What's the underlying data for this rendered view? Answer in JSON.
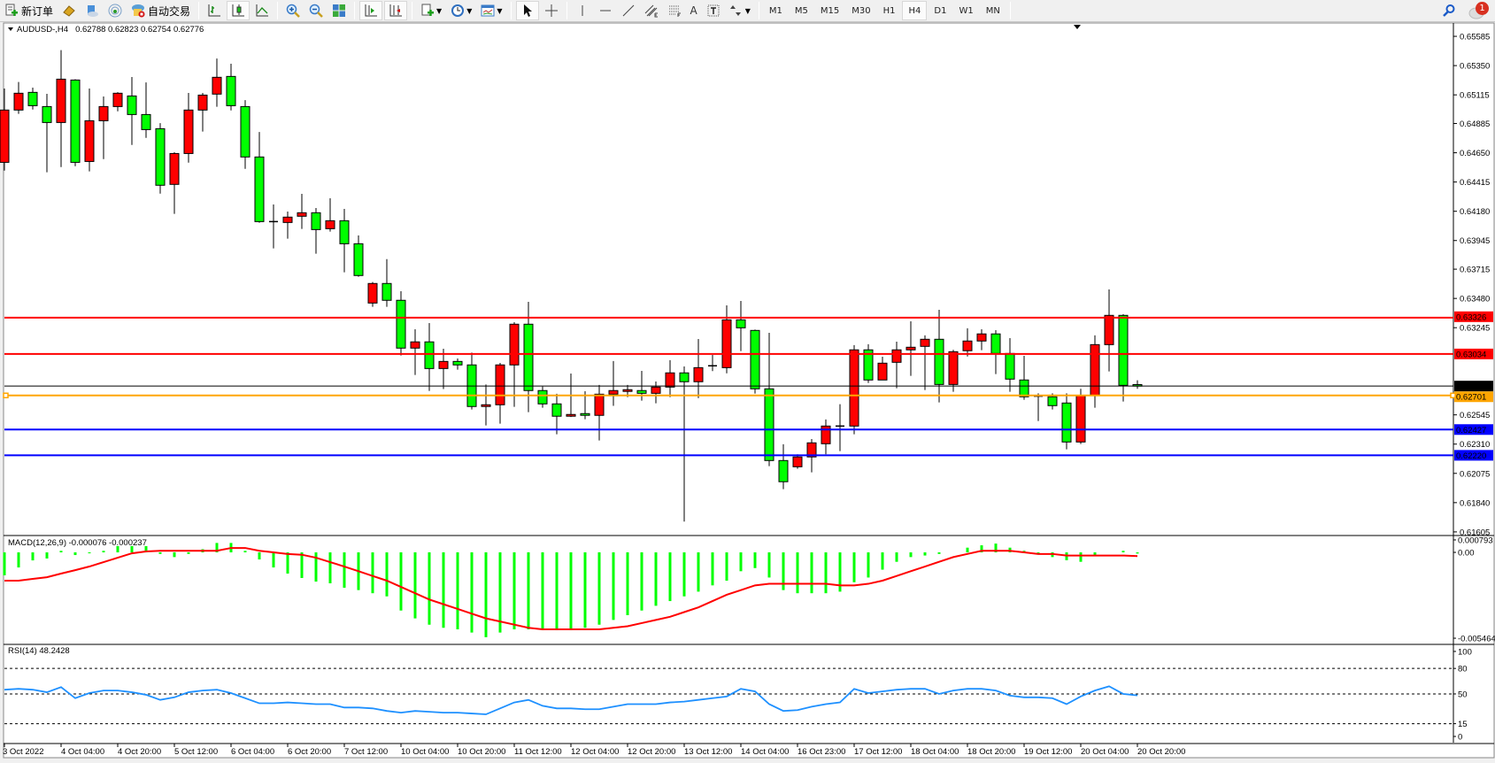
{
  "toolbar": {
    "new_order_label": "新订单",
    "auto_trading_label": "自动交易",
    "icons": [
      "new-order-icon",
      "market-watch-icon",
      "data-window-icon",
      "navigator-icon",
      "auto-trading-icon",
      "bar-chart-icon",
      "candlestick-icon",
      "line-chart-icon",
      "zoom-in-icon",
      "zoom-out-icon",
      "tile-windows-icon",
      "auto-scroll-icon",
      "chart-shift-icon",
      "indicators-icon",
      "periods-icon",
      "templates-icon",
      "cursor-icon",
      "crosshair-icon",
      "vertical-line-icon",
      "horizontal-line-icon",
      "trendline-icon",
      "equidistant-channel-icon",
      "fibonacci-icon",
      "text-icon",
      "text-label-icon",
      "arrows-icon"
    ],
    "timeframes": [
      "M1",
      "M5",
      "M15",
      "M30",
      "H1",
      "H4",
      "D1",
      "W1",
      "MN"
    ],
    "active_timeframe": "H4",
    "text_tool_label": "A",
    "notification_count": "1"
  },
  "chart": {
    "symbol_label": "AUDUSD-,H4",
    "ohlc_label": "0.62788 0.62823 0.62754 0.62776",
    "colors": {
      "bull_body": "#ff0000",
      "bear_body": "#00ff00",
      "wick": "#000000",
      "macd_hist": "#00ff00",
      "macd_signal": "#ff0000",
      "rsi": "#1e90ff"
    }
  },
  "chart_data": [
    {
      "type": "candlestick",
      "title": "AUDUSD-,H4",
      "ylim": [
        0.61583,
        0.65692
      ],
      "y_ticks": [
        "0.65585",
        "0.65350",
        "0.65115",
        "0.64885",
        "0.64650",
        "0.64415",
        "0.64180",
        "0.63945",
        "0.63715",
        "0.63480",
        "0.63245",
        "0.62545",
        "0.62310",
        "0.62075",
        "0.61840",
        "0.61605"
      ],
      "x_labels": [
        {
          "i": 0,
          "label": "3 Oct 2022"
        },
        {
          "i": 4,
          "label": "4 Oct 04:00"
        },
        {
          "i": 8,
          "label": "4 Oct 20:00"
        },
        {
          "i": 12,
          "label": "5 Oct 12:00"
        },
        {
          "i": 16,
          "label": "6 Oct 04:00"
        },
        {
          "i": 20,
          "label": "6 Oct 20:00"
        },
        {
          "i": 24,
          "label": "7 Oct 12:00"
        },
        {
          "i": 28,
          "label": "10 Oct 04:00"
        },
        {
          "i": 32,
          "label": "10 Oct 20:00"
        },
        {
          "i": 36,
          "label": "11 Oct 12:00"
        },
        {
          "i": 40,
          "label": "12 Oct 04:00"
        },
        {
          "i": 44,
          "label": "12 Oct 20:00"
        },
        {
          "i": 48,
          "label": "13 Oct 12:00"
        },
        {
          "i": 52,
          "label": "14 Oct 04:00"
        },
        {
          "i": 56,
          "label": "16 Oct 23:00"
        },
        {
          "i": 60,
          "label": "17 Oct 12:00"
        },
        {
          "i": 64,
          "label": "18 Oct 04:00"
        },
        {
          "i": 68,
          "label": "18 Oct 20:00"
        },
        {
          "i": 72,
          "label": "19 Oct 12:00"
        },
        {
          "i": 76,
          "label": "20 Oct 04:00"
        },
        {
          "i": 80,
          "label": "20 Oct 20:00"
        }
      ],
      "levels": [
        {
          "price": 0.63326,
          "label": "0.63326",
          "color": "#ff0000",
          "width": 2
        },
        {
          "price": 0.63034,
          "label": "0.63034",
          "color": "#ff0000",
          "width": 2
        },
        {
          "price": 0.62776,
          "label": "0.62776",
          "color": "#000000",
          "width": 1
        },
        {
          "price": 0.62701,
          "label": "0.62701",
          "color": "#ffa500",
          "width": 2
        },
        {
          "price": 0.62427,
          "label": "0.62427",
          "color": "#0000ff",
          "width": 2
        },
        {
          "price": 0.6222,
          "label": "0.62220",
          "color": "#0000ff",
          "width": 2
        }
      ],
      "ohlc": [
        [
          0.64573,
          0.65166,
          0.64507,
          0.64993
        ],
        [
          0.64993,
          0.65218,
          0.64962,
          0.65128
        ],
        [
          0.65135,
          0.65173,
          0.64997,
          0.65028
        ],
        [
          0.65021,
          0.65123,
          0.64493,
          0.64893
        ],
        [
          0.64893,
          0.65474,
          0.64535,
          0.65241
        ],
        [
          0.65234,
          0.65241,
          0.64542,
          0.64573
        ],
        [
          0.6458,
          0.65166,
          0.645,
          0.64907
        ],
        [
          0.64907,
          0.65102,
          0.64599,
          0.65021
        ],
        [
          0.65021,
          0.65137,
          0.64983,
          0.65128
        ],
        [
          0.65106,
          0.65258,
          0.64713,
          0.64957
        ],
        [
          0.64957,
          0.65215,
          0.6477,
          0.64836
        ],
        [
          0.64843,
          0.64888,
          0.64322,
          0.64389
        ],
        [
          0.64396,
          0.64654,
          0.64159,
          0.64644
        ],
        [
          0.64644,
          0.6513,
          0.64571,
          0.64993
        ],
        [
          0.64993,
          0.6513,
          0.6482,
          0.65113
        ],
        [
          0.65121,
          0.65407,
          0.65019,
          0.65256
        ],
        [
          0.65263,
          0.65365,
          0.6499,
          0.65028
        ],
        [
          0.65021,
          0.65073,
          0.64521,
          0.64616
        ],
        [
          0.64616,
          0.64817,
          0.64088,
          0.64097
        ],
        [
          0.64097,
          0.64235,
          0.63882,
          0.6409
        ],
        [
          0.6409,
          0.64178,
          0.6396,
          0.64133
        ],
        [
          0.6414,
          0.6432,
          0.64038,
          0.64168
        ],
        [
          0.64168,
          0.64206,
          0.63839,
          0.64033
        ],
        [
          0.6404,
          0.64284,
          0.64017,
          0.64104
        ],
        [
          0.64104,
          0.64199,
          0.6369,
          0.63919
        ],
        [
          0.63919,
          0.63986,
          0.63654,
          0.63664
        ],
        [
          0.63443,
          0.63612,
          0.63413,
          0.636
        ],
        [
          0.636,
          0.63796,
          0.63413,
          0.63465
        ],
        [
          0.63465,
          0.63538,
          0.63022,
          0.63081
        ],
        [
          0.63081,
          0.63232,
          0.62865,
          0.63131
        ],
        [
          0.63131,
          0.63282,
          0.62737,
          0.62917
        ],
        [
          0.62917,
          0.63076,
          0.62752,
          0.62974
        ],
        [
          0.62974,
          0.62998,
          0.62908,
          0.62946
        ],
        [
          0.62946,
          0.63045,
          0.62588,
          0.62612
        ],
        [
          0.62612,
          0.62789,
          0.6246,
          0.62626
        ],
        [
          0.62626,
          0.62962,
          0.62474,
          0.62946
        ],
        [
          0.62946,
          0.63289,
          0.62609,
          0.63273
        ],
        [
          0.63273,
          0.63453,
          0.62567,
          0.6274
        ],
        [
          0.6274,
          0.62773,
          0.62602,
          0.62633
        ],
        [
          0.62633,
          0.62714,
          0.62389,
          0.62534
        ],
        [
          0.62534,
          0.62877,
          0.62528,
          0.62548
        ],
        [
          0.62555,
          0.62735,
          0.6251,
          0.62541
        ],
        [
          0.62541,
          0.62785,
          0.62339,
          0.62711
        ],
        [
          0.62711,
          0.62977,
          0.62617,
          0.6274
        ],
        [
          0.62733,
          0.62785,
          0.62688,
          0.62747
        ],
        [
          0.6274,
          0.62898,
          0.62659,
          0.62718
        ],
        [
          0.62718,
          0.62813,
          0.62638,
          0.62768
        ],
        [
          0.62768,
          0.62984,
          0.62688,
          0.62882
        ],
        [
          0.62882,
          0.62934,
          0.61688,
          0.62811
        ],
        [
          0.62811,
          0.63154,
          0.6268,
          0.62924
        ],
        [
          0.62932,
          0.63026,
          0.62896,
          0.62939
        ],
        [
          0.62924,
          0.63424,
          0.62879,
          0.63308
        ],
        [
          0.63308,
          0.6346,
          0.63057,
          0.63244
        ],
        [
          0.63223,
          0.6323,
          0.62716,
          0.62754
        ],
        [
          0.62754,
          0.63204,
          0.62133,
          0.62178
        ],
        [
          0.62178,
          0.62309,
          0.61948,
          0.62008
        ],
        [
          0.62128,
          0.62228,
          0.62112,
          0.62207
        ],
        [
          0.62207,
          0.62351,
          0.62083,
          0.6232
        ],
        [
          0.62313,
          0.62508,
          0.62228,
          0.62455
        ],
        [
          0.62455,
          0.62631,
          0.62254,
          0.62446
        ],
        [
          0.62455,
          0.63105,
          0.62389,
          0.63067
        ],
        [
          0.63067,
          0.63112,
          0.62801,
          0.62825
        ],
        [
          0.62825,
          0.63012,
          0.62825,
          0.6296
        ],
        [
          0.62967,
          0.63133,
          0.62759,
          0.63067
        ],
        [
          0.63067,
          0.63296,
          0.62858,
          0.63088
        ],
        [
          0.63095,
          0.63183,
          0.62744,
          0.63152
        ],
        [
          0.63152,
          0.63389,
          0.62645,
          0.62789
        ],
        [
          0.62789,
          0.63067,
          0.6273,
          0.63052
        ],
        [
          0.6306,
          0.6324,
          0.63014,
          0.63138
        ],
        [
          0.63138,
          0.63232,
          0.63064,
          0.63195
        ],
        [
          0.63195,
          0.63225,
          0.62872,
          0.63038
        ],
        [
          0.63038,
          0.63161,
          0.6273,
          0.62832
        ],
        [
          0.62825,
          0.63019,
          0.62666,
          0.6269
        ],
        [
          0.62695,
          0.62718,
          0.62496,
          0.62688
        ],
        [
          0.6269,
          0.62718,
          0.62588,
          0.62619
        ],
        [
          0.6264,
          0.62718,
          0.62268,
          0.62327
        ],
        [
          0.62327,
          0.62754,
          0.62311,
          0.62702
        ],
        [
          0.62702,
          0.63183,
          0.62602,
          0.63109
        ],
        [
          0.63109,
          0.63552,
          0.62894,
          0.63344
        ],
        [
          0.63344,
          0.63353,
          0.62652,
          0.62782
        ],
        [
          0.62788,
          0.62823,
          0.62754,
          0.62776
        ]
      ]
    },
    {
      "type": "bar+line",
      "title": "MACD(12,26,9) -0.000076 -0.000237",
      "ylim": [
        -0.0058,
        0.00096
      ],
      "y_ticks": [
        "0.000793",
        "0.00",
        "-0.005464"
      ],
      "series": [
        {
          "type": "bar",
          "values": [
            -0.00146,
            -0.00096,
            -0.00051,
            -0.00039,
            0.0001,
            -0.00017,
            -6e-05,
            0.0001,
            0.0004,
            0.0004,
            0.0004,
            -0.0001,
            -0.0003,
            -0.0001,
            0.0002,
            0.0006,
            0.0006,
            0.0001,
            -0.00045,
            -0.00096,
            -0.00135,
            -0.00163,
            -0.00186,
            -0.00197,
            -0.00225,
            -0.0024,
            -0.0026,
            -0.0028,
            -0.0037,
            -0.0042,
            -0.0046,
            -0.0048,
            -0.0049,
            -0.0051,
            -0.0054,
            -0.0051,
            -0.0049,
            -0.0049,
            -0.0049,
            -0.0049,
            -0.0049,
            -0.0048,
            -0.0046,
            -0.0043,
            -0.004,
            -0.0037,
            -0.0034,
            -0.0031,
            -0.0028,
            -0.0025,
            -0.0021,
            -0.0018,
            -0.0012,
            -0.001,
            -0.0016,
            -0.0024,
            -0.0026,
            -0.0026,
            -0.0026,
            -0.0025,
            -0.0019,
            -0.0016,
            -0.0011,
            -0.0006,
            -0.0003,
            -0.0002,
            -0.0001,
            0.0,
            0.0003,
            0.00045,
            0.00056,
            0.0003,
            0.0001,
            -0.0001,
            -0.0003,
            -0.0005,
            -0.0006,
            -0.0002,
            0.0,
            0.0001,
            -7.6e-05
          ]
        },
        {
          "type": "line",
          "values": [
            -0.0018,
            -0.0018,
            -0.00169,
            -0.00158,
            -0.00135,
            -0.00113,
            -0.0009,
            -0.00062,
            -0.00034,
            -6e-05,
            6e-05,
            0.0001,
            0.0001,
            0.0001,
            0.0001,
            0.0001,
            0.00028,
            0.00028,
            0.0001,
            0.0,
            -0.0001,
            -0.00015,
            -0.00034,
            -0.00062,
            -0.0009,
            -0.0012,
            -0.0015,
            -0.0018,
            -0.0022,
            -0.0026,
            -0.003,
            -0.0033,
            -0.0036,
            -0.0039,
            -0.0042,
            -0.0044,
            -0.0046,
            -0.0048,
            -0.0049,
            -0.0049,
            -0.0049,
            -0.0049,
            -0.0049,
            -0.0048,
            -0.0047,
            -0.0045,
            -0.0043,
            -0.0041,
            -0.0038,
            -0.0035,
            -0.0031,
            -0.0027,
            -0.0024,
            -0.0021,
            -0.002,
            -0.002,
            -0.002,
            -0.002,
            -0.002,
            -0.0021,
            -0.0021,
            -0.002,
            -0.0018,
            -0.0015,
            -0.0012,
            -0.0009,
            -0.0006,
            -0.0003,
            -0.0001,
            0.0001,
            0.0001,
            0.0001,
            0.0,
            -0.0001,
            -0.0001,
            -0.0002,
            -0.0002,
            -0.0002,
            -0.0002,
            -0.0002,
            -0.000237
          ]
        }
      ]
    },
    {
      "type": "line",
      "title": "RSI(14) 48.2428",
      "ylim": [
        -7.3,
        106.2
      ],
      "y_ticks": [
        "100",
        "80",
        "50",
        "15",
        "0"
      ],
      "levels": [
        80,
        50,
        15
      ],
      "values": [
        55,
        56,
        55,
        52,
        58,
        45,
        51,
        54,
        54,
        52,
        49,
        43,
        46,
        52,
        54,
        55,
        51,
        45,
        39,
        39,
        40,
        39,
        38,
        38,
        34,
        34,
        33,
        30,
        28,
        30,
        29,
        28,
        28,
        27,
        26,
        33,
        40,
        43,
        36,
        33,
        33,
        32,
        32,
        35,
        38,
        38,
        38,
        40,
        41,
        43,
        45,
        47,
        56,
        53,
        38,
        30,
        31,
        35,
        38,
        40,
        56,
        51,
        53,
        55,
        56,
        56,
        50,
        54,
        56,
        56,
        54,
        48,
        46,
        46,
        45,
        38,
        47,
        54,
        59,
        50,
        48.2428
      ]
    }
  ]
}
